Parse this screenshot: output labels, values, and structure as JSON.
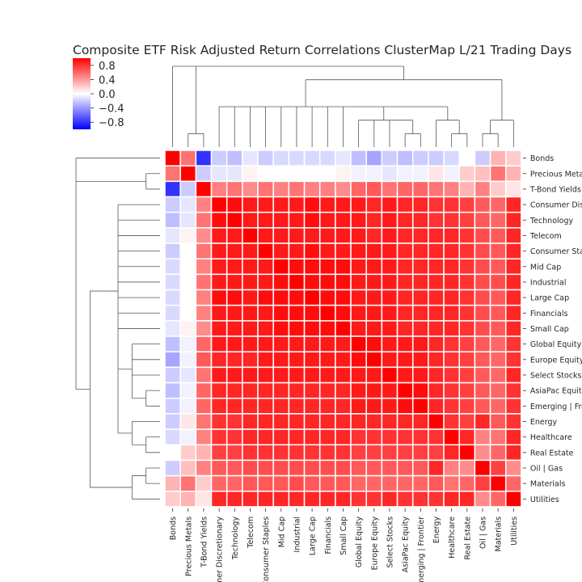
{
  "chart_data": {
    "type": "heatmap",
    "title": "Composite ETF Risk Adjusted Return Correlations ClusterMap L/21 Trading Days",
    "labels": [
      "Bonds",
      "Precious Metals",
      "T-Bond Yields",
      "Consumer Discretionary",
      "Technology",
      "Telecom",
      "Consumer Staples",
      "Mid Cap",
      "Industrial",
      "Large Cap",
      "Financials",
      "Small Cap",
      "Global Equity",
      "Europe Equity",
      "Select Stocks",
      "AsiaPac Equity",
      "Emerging | Frontier",
      "Energy",
      "Healthcare",
      "Real Estate",
      "Oil | Gas",
      "Materials",
      "Utilities"
    ],
    "colorbar": {
      "vmin": -1,
      "vmax": 1,
      "ticks": [
        0.8,
        0.4,
        0.0,
        -0.4,
        -0.8
      ],
      "tick_labels": [
        "0.8",
        "0.4",
        "0.0",
        "−0.4",
        "−0.8"
      ],
      "colors": [
        "#0000ff",
        "#ffffff",
        "#ff0000"
      ]
    },
    "values": [
      [
        1.0,
        0.55,
        -0.8,
        -0.2,
        -0.25,
        -0.1,
        -0.2,
        -0.15,
        -0.15,
        -0.15,
        -0.15,
        -0.1,
        -0.25,
        -0.35,
        -0.2,
        -0.25,
        -0.2,
        -0.2,
        -0.15,
        0.0,
        -0.2,
        0.3,
        0.2
      ],
      [
        0.55,
        1.0,
        -0.2,
        -0.1,
        -0.1,
        0.05,
        0.0,
        0.0,
        0.0,
        0.0,
        0.0,
        0.05,
        -0.05,
        -0.05,
        -0.1,
        -0.05,
        -0.05,
        0.1,
        -0.05,
        0.2,
        0.25,
        0.55,
        0.3
      ],
      [
        -0.8,
        -0.2,
        1.0,
        0.5,
        0.55,
        0.45,
        0.55,
        0.5,
        0.55,
        0.5,
        0.5,
        0.45,
        0.6,
        0.65,
        0.55,
        0.6,
        0.6,
        0.55,
        0.5,
        0.3,
        0.5,
        0.2,
        0.1
      ],
      [
        -0.2,
        -0.1,
        0.5,
        1.0,
        0.95,
        0.9,
        0.9,
        0.9,
        0.9,
        0.95,
        0.9,
        0.9,
        0.9,
        0.85,
        0.9,
        0.85,
        0.85,
        0.8,
        0.8,
        0.75,
        0.65,
        0.6,
        0.85
      ],
      [
        -0.25,
        -0.1,
        0.55,
        0.95,
        1.0,
        0.9,
        0.9,
        0.9,
        0.9,
        0.95,
        0.9,
        0.9,
        0.9,
        0.85,
        0.9,
        0.85,
        0.85,
        0.8,
        0.8,
        0.75,
        0.65,
        0.6,
        0.85
      ],
      [
        -0.1,
        0.05,
        0.45,
        0.9,
        0.9,
        1.0,
        0.9,
        0.9,
        0.9,
        0.9,
        0.9,
        0.9,
        0.9,
        0.85,
        0.9,
        0.85,
        0.85,
        0.85,
        0.85,
        0.8,
        0.7,
        0.65,
        0.85
      ],
      [
        -0.2,
        0.0,
        0.55,
        0.9,
        0.9,
        0.9,
        1.0,
        0.9,
        0.9,
        0.95,
        0.9,
        0.9,
        0.9,
        0.9,
        0.9,
        0.85,
        0.85,
        0.85,
        0.85,
        0.8,
        0.7,
        0.65,
        0.85
      ],
      [
        -0.15,
        0.0,
        0.5,
        0.9,
        0.9,
        0.9,
        0.9,
        1.0,
        0.95,
        0.95,
        0.95,
        0.95,
        0.9,
        0.9,
        0.9,
        0.85,
        0.85,
        0.85,
        0.85,
        0.8,
        0.7,
        0.65,
        0.85
      ],
      [
        -0.15,
        0.0,
        0.55,
        0.9,
        0.9,
        0.9,
        0.9,
        0.95,
        1.0,
        0.95,
        0.95,
        0.95,
        0.9,
        0.9,
        0.9,
        0.85,
        0.85,
        0.85,
        0.85,
        0.8,
        0.7,
        0.7,
        0.85
      ],
      [
        -0.15,
        0.0,
        0.5,
        0.95,
        0.95,
        0.9,
        0.95,
        0.95,
        0.95,
        1.0,
        0.95,
        0.95,
        0.9,
        0.9,
        0.9,
        0.85,
        0.85,
        0.85,
        0.85,
        0.8,
        0.7,
        0.65,
        0.85
      ],
      [
        -0.15,
        0.0,
        0.5,
        0.9,
        0.9,
        0.9,
        0.9,
        0.95,
        0.95,
        0.95,
        1.0,
        0.95,
        0.9,
        0.9,
        0.9,
        0.85,
        0.85,
        0.85,
        0.85,
        0.8,
        0.7,
        0.65,
        0.85
      ],
      [
        -0.1,
        0.05,
        0.45,
        0.9,
        0.9,
        0.9,
        0.9,
        0.95,
        0.95,
        0.95,
        0.95,
        1.0,
        0.9,
        0.9,
        0.9,
        0.85,
        0.85,
        0.85,
        0.85,
        0.8,
        0.7,
        0.65,
        0.85
      ],
      [
        -0.25,
        -0.05,
        0.6,
        0.9,
        0.9,
        0.9,
        0.9,
        0.9,
        0.9,
        0.9,
        0.9,
        0.9,
        1.0,
        0.95,
        0.9,
        0.9,
        0.9,
        0.85,
        0.8,
        0.75,
        0.65,
        0.6,
        0.8
      ],
      [
        -0.35,
        -0.05,
        0.65,
        0.85,
        0.85,
        0.85,
        0.9,
        0.9,
        0.9,
        0.9,
        0.9,
        0.9,
        0.95,
        1.0,
        0.9,
        0.9,
        0.9,
        0.85,
        0.8,
        0.75,
        0.65,
        0.6,
        0.8
      ],
      [
        -0.2,
        -0.1,
        0.55,
        0.9,
        0.9,
        0.9,
        0.9,
        0.9,
        0.9,
        0.9,
        0.9,
        0.9,
        0.9,
        0.9,
        1.0,
        0.9,
        0.9,
        0.85,
        0.8,
        0.75,
        0.65,
        0.6,
        0.85
      ],
      [
        -0.25,
        -0.05,
        0.6,
        0.85,
        0.85,
        0.85,
        0.85,
        0.85,
        0.85,
        0.85,
        0.85,
        0.85,
        0.9,
        0.9,
        0.9,
        1.0,
        0.95,
        0.85,
        0.8,
        0.75,
        0.65,
        0.6,
        0.8
      ],
      [
        -0.2,
        -0.05,
        0.6,
        0.85,
        0.85,
        0.85,
        0.85,
        0.85,
        0.85,
        0.85,
        0.85,
        0.85,
        0.9,
        0.9,
        0.9,
        0.95,
        1.0,
        0.85,
        0.8,
        0.75,
        0.65,
        0.6,
        0.8
      ],
      [
        -0.2,
        0.1,
        0.55,
        0.8,
        0.8,
        0.85,
        0.85,
        0.85,
        0.85,
        0.85,
        0.85,
        0.85,
        0.85,
        0.85,
        0.85,
        0.85,
        0.85,
        1.0,
        0.8,
        0.75,
        0.85,
        0.65,
        0.8
      ],
      [
        -0.15,
        -0.05,
        0.5,
        0.8,
        0.8,
        0.85,
        0.85,
        0.85,
        0.85,
        0.85,
        0.85,
        0.85,
        0.8,
        0.8,
        0.8,
        0.8,
        0.8,
        0.8,
        1.0,
        0.85,
        0.5,
        0.55,
        0.85
      ],
      [
        0.0,
        0.2,
        0.3,
        0.75,
        0.75,
        0.8,
        0.8,
        0.8,
        0.8,
        0.8,
        0.8,
        0.8,
        0.75,
        0.75,
        0.75,
        0.75,
        0.75,
        0.75,
        0.85,
        1.0,
        0.45,
        0.6,
        0.85
      ],
      [
        -0.2,
        0.25,
        0.5,
        0.65,
        0.65,
        0.7,
        0.7,
        0.7,
        0.7,
        0.7,
        0.7,
        0.7,
        0.65,
        0.65,
        0.65,
        0.65,
        0.65,
        0.85,
        0.5,
        0.45,
        1.0,
        0.75,
        0.45
      ],
      [
        0.3,
        0.55,
        0.2,
        0.6,
        0.6,
        0.65,
        0.65,
        0.65,
        0.7,
        0.65,
        0.65,
        0.65,
        0.6,
        0.6,
        0.6,
        0.6,
        0.6,
        0.65,
        0.55,
        0.6,
        0.75,
        1.0,
        0.6
      ],
      [
        0.2,
        0.3,
        0.1,
        0.85,
        0.85,
        0.85,
        0.85,
        0.85,
        0.85,
        0.85,
        0.85,
        0.85,
        0.8,
        0.8,
        0.85,
        0.8,
        0.8,
        0.8,
        0.85,
        0.85,
        0.45,
        0.6,
        1.0
      ]
    ]
  }
}
